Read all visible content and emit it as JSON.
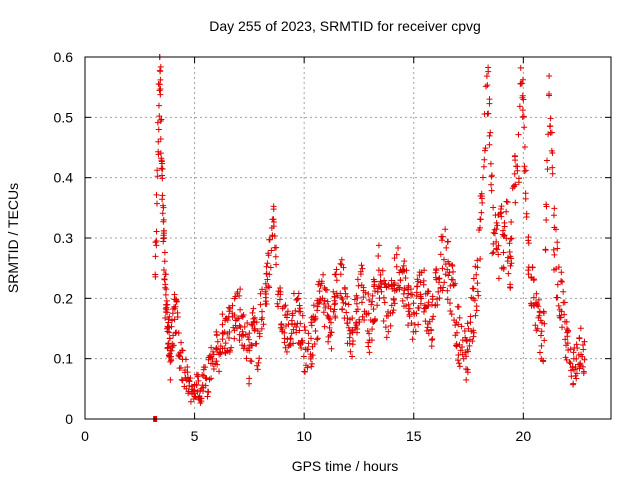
{
  "chart_data": {
    "type": "scatter",
    "title": "Day 255 of 2023, SRMTID for receiver cpvg",
    "xlabel": "GPS time / hours",
    "ylabel": "SRMTID / TECUs",
    "xlim": [
      0,
      24
    ],
    "ylim": [
      0,
      0.6
    ],
    "xticks": [
      0,
      5,
      10,
      15,
      20
    ],
    "xtick_labels": [
      "0",
      "5",
      "10",
      "15",
      "20"
    ],
    "yticks": [
      0,
      0.1,
      0.2,
      0.3,
      0.4,
      0.5,
      0.6
    ],
    "ytick_labels": [
      "0",
      "0.1",
      "0.2",
      "0.3",
      "0.4",
      "0.5",
      "0.6"
    ],
    "grid": true,
    "marker": "+",
    "color": "#e00000",
    "series": [
      {
        "name": "SRMTID",
        "x": [
          3.2,
          3.22,
          3.28,
          3.33,
          3.36,
          3.4,
          3.42,
          3.45,
          3.47,
          3.5,
          3.53,
          3.55,
          3.58,
          3.6,
          3.62,
          3.65,
          3.67,
          3.7,
          3.72,
          3.75,
          3.78,
          3.8,
          3.83,
          3.86,
          3.88,
          3.9,
          3.95,
          4.0,
          4.05,
          4.1,
          4.15,
          4.2,
          4.3,
          4.4,
          4.5,
          4.6,
          4.7,
          4.8,
          4.9,
          5.0,
          5.1,
          5.2,
          5.3,
          5.4,
          5.5,
          5.6,
          5.7,
          5.8,
          5.9,
          6.0,
          6.1,
          6.2,
          6.3,
          6.5,
          6.7,
          6.9,
          7.1,
          7.3,
          7.5,
          7.7,
          7.9,
          8.1,
          8.3,
          8.5,
          8.6,
          8.8,
          9.0,
          9.2,
          9.4,
          9.6,
          9.8,
          10.0,
          10.2,
          10.4,
          10.6,
          10.8,
          11.0,
          11.2,
          11.4,
          11.6,
          11.8,
          12.0,
          12.2,
          12.4,
          12.6,
          12.8,
          13.0,
          13.2,
          13.4,
          13.6,
          13.8,
          14.0,
          14.2,
          14.4,
          14.6,
          14.8,
          15.0,
          15.2,
          15.4,
          15.6,
          15.8,
          16.0,
          16.2,
          16.4,
          16.6,
          16.8,
          17.0,
          17.2,
          17.4,
          17.6,
          17.8,
          18.0,
          18.1,
          18.2,
          18.3,
          18.4,
          18.5,
          18.6,
          18.8,
          19.0,
          19.2,
          19.4,
          19.6,
          19.8,
          19.9,
          20.0,
          20.2,
          20.4,
          20.6,
          20.8,
          20.9,
          21.0,
          21.1,
          21.2,
          21.4,
          21.6,
          21.8,
          22.0,
          22.2,
          22.4,
          22.6,
          22.8
        ],
        "y": [
          0.2,
          0.28,
          0.35,
          0.45,
          0.5,
          0.55,
          0.6,
          0.56,
          0.48,
          0.42,
          0.38,
          0.32,
          0.3,
          0.28,
          0.25,
          0.22,
          0.2,
          0.21,
          0.18,
          0.16,
          0.15,
          0.13,
          0.12,
          0.14,
          0.11,
          0.1,
          0.12,
          0.14,
          0.16,
          0.17,
          0.18,
          0.15,
          0.12,
          0.1,
          0.08,
          0.07,
          0.06,
          0.05,
          0.04,
          0.05,
          0.06,
          0.05,
          0.04,
          0.07,
          0.08,
          0.06,
          0.09,
          0.1,
          0.08,
          0.12,
          0.11,
          0.13,
          0.15,
          0.14,
          0.16,
          0.18,
          0.17,
          0.13,
          0.1,
          0.15,
          0.12,
          0.2,
          0.22,
          0.3,
          0.34,
          0.2,
          0.18,
          0.15,
          0.14,
          0.19,
          0.16,
          0.12,
          0.1,
          0.14,
          0.17,
          0.22,
          0.18,
          0.15,
          0.2,
          0.24,
          0.21,
          0.16,
          0.14,
          0.18,
          0.22,
          0.19,
          0.15,
          0.2,
          0.25,
          0.21,
          0.17,
          0.2,
          0.24,
          0.26,
          0.22,
          0.19,
          0.17,
          0.2,
          0.22,
          0.19,
          0.16,
          0.21,
          0.25,
          0.27,
          0.24,
          0.2,
          0.15,
          0.12,
          0.1,
          0.16,
          0.2,
          0.28,
          0.36,
          0.45,
          0.5,
          0.55,
          0.42,
          0.32,
          0.28,
          0.3,
          0.33,
          0.25,
          0.38,
          0.45,
          0.55,
          0.52,
          0.3,
          0.22,
          0.18,
          0.14,
          0.1,
          0.25,
          0.4,
          0.55,
          0.3,
          0.22,
          0.18,
          0.12,
          0.08,
          0.1,
          0.12,
          0.1
        ],
        "spread": [
          0.03,
          0.05,
          0.07,
          0.08,
          0.08,
          0.06,
          0.03,
          0.06,
          0.07,
          0.07,
          0.07,
          0.07,
          0.06,
          0.06,
          0.05,
          0.05,
          0.04,
          0.04,
          0.04,
          0.04,
          0.04,
          0.04,
          0.04,
          0.04,
          0.04,
          0.04,
          0.04,
          0.04,
          0.04,
          0.04,
          0.04,
          0.04,
          0.04,
          0.035,
          0.03,
          0.03,
          0.025,
          0.02,
          0.015,
          0.02,
          0.02,
          0.02,
          0.02,
          0.025,
          0.025,
          0.03,
          0.03,
          0.03,
          0.03,
          0.03,
          0.035,
          0.035,
          0.035,
          0.04,
          0.04,
          0.04,
          0.045,
          0.045,
          0.045,
          0.045,
          0.045,
          0.05,
          0.05,
          0.04,
          0.02,
          0.04,
          0.04,
          0.04,
          0.04,
          0.045,
          0.045,
          0.045,
          0.045,
          0.045,
          0.045,
          0.045,
          0.045,
          0.045,
          0.045,
          0.045,
          0.045,
          0.045,
          0.045,
          0.045,
          0.045,
          0.045,
          0.045,
          0.045,
          0.045,
          0.045,
          0.045,
          0.045,
          0.045,
          0.045,
          0.045,
          0.045,
          0.045,
          0.045,
          0.045,
          0.045,
          0.045,
          0.045,
          0.05,
          0.05,
          0.05,
          0.05,
          0.05,
          0.045,
          0.045,
          0.05,
          0.05,
          0.06,
          0.07,
          0.08,
          0.06,
          0.05,
          0.07,
          0.07,
          0.07,
          0.07,
          0.07,
          0.06,
          0.07,
          0.07,
          0.05,
          0.05,
          0.06,
          0.05,
          0.04,
          0.04,
          0.04,
          0.06,
          0.07,
          0.05,
          0.06,
          0.05,
          0.05,
          0.04,
          0.03,
          0.035,
          0.035,
          0.03
        ],
        "outliers": [
          {
            "x": 3.2,
            "y": 0.0
          }
        ]
      }
    ]
  }
}
